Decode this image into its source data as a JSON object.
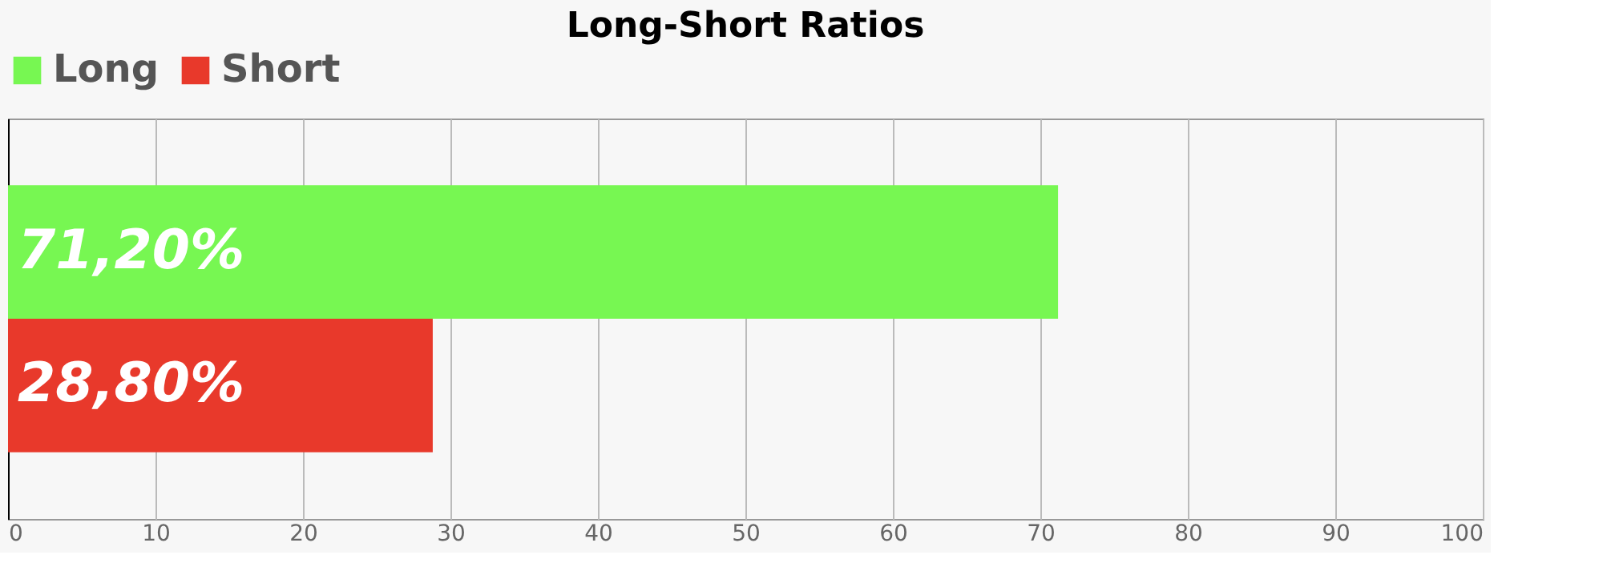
{
  "chart_data": {
    "type": "bar",
    "orientation": "horizontal",
    "title": "Long-Short Ratios",
    "categories": [
      null
    ],
    "series": [
      {
        "name": "Long",
        "color": "#77f752",
        "values": [
          71.2
        ],
        "value_labels": [
          "71,20%"
        ]
      },
      {
        "name": "Short",
        "color": "#e8392b",
        "values": [
          28.8
        ],
        "value_labels": [
          "28,80%"
        ]
      }
    ],
    "xlim": [
      0,
      100
    ],
    "xticks": [
      0,
      10,
      20,
      30,
      40,
      50,
      60,
      70,
      80,
      90,
      100
    ],
    "grid": "x",
    "legend": "top",
    "tick_labels": "x"
  }
}
